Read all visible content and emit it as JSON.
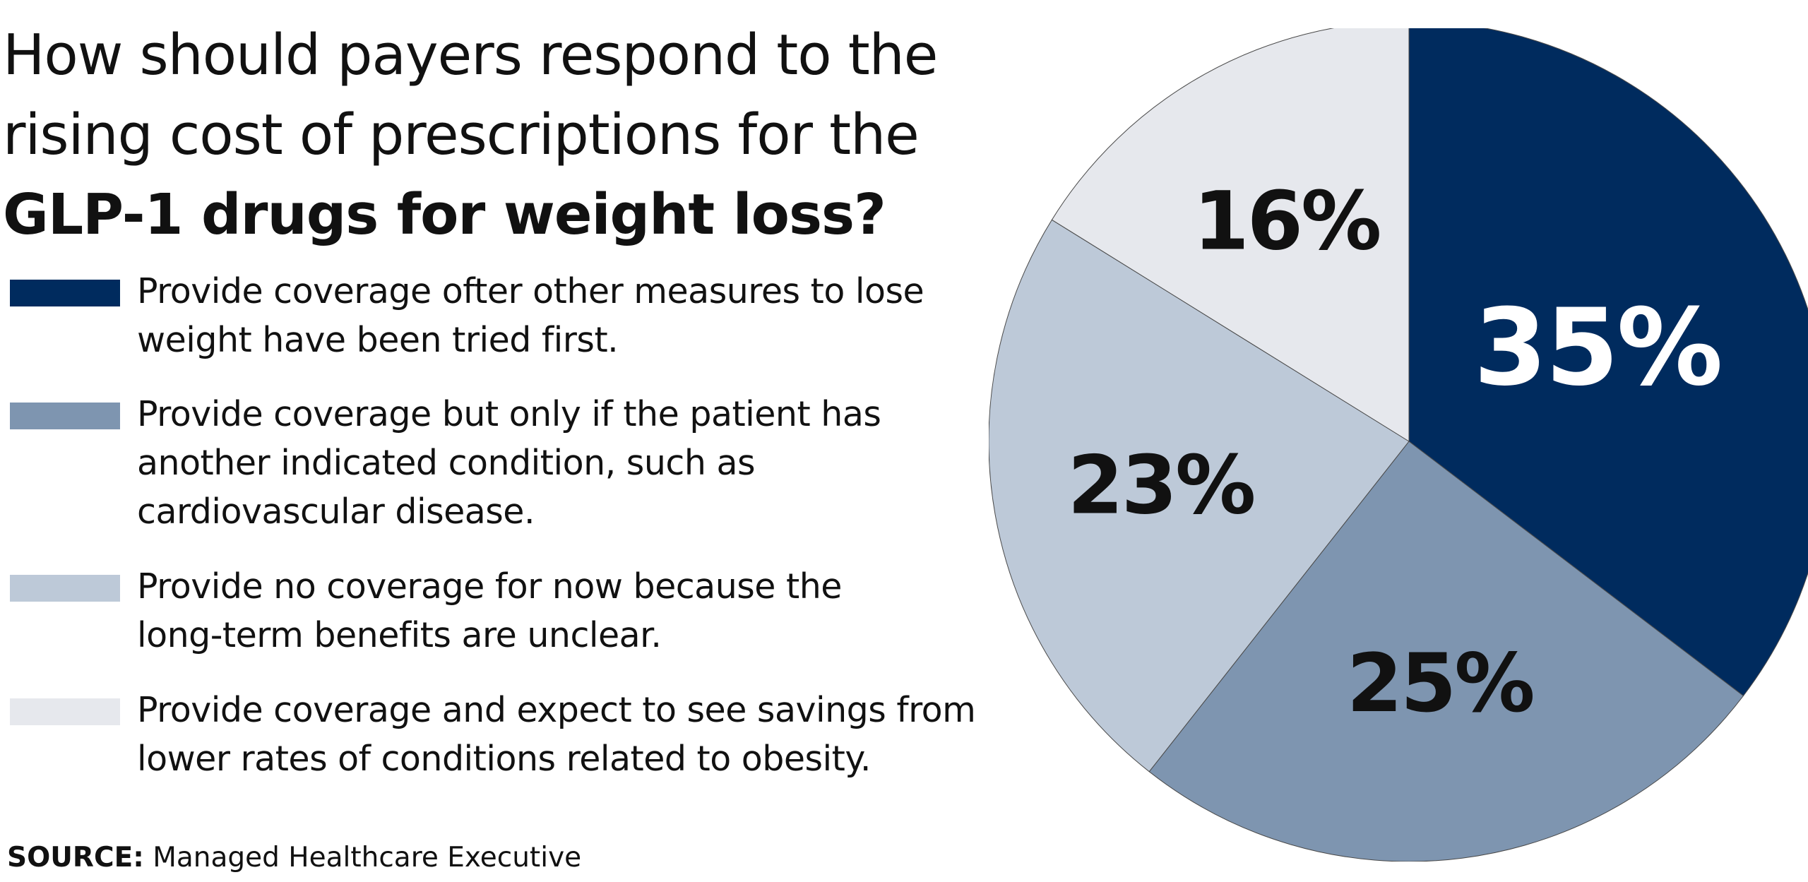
{
  "title": {
    "line1": "How should payers respond to the",
    "line2": "rising cost of prescriptions for the",
    "line3": "GLP-1 drugs for weight loss?"
  },
  "legend": [
    {
      "line1": "Provide coverage ofter other measures to lose",
      "line2": "weight have been tried first.",
      "line3": "",
      "color": "#002b5e"
    },
    {
      "line1": "Provide coverage but only if the patient has",
      "line2": "another indicated condition, such as",
      "line3": "cardiovascular disease.",
      "color": "#7e95b0"
    },
    {
      "line1": "Provide no coverage for now because the",
      "line2": "long-term benefits are unclear.",
      "line3": "",
      "color": "#bdc9d8"
    },
    {
      "line1": "Provide coverage and expect to see savings from",
      "line2": "lower rates of conditions related to obesity.",
      "line3": "",
      "color": "#e6e8ed"
    }
  ],
  "source": {
    "label": "SOURCE:",
    "text": "Managed Healthcare Executive"
  },
  "chart_data": {
    "type": "pie",
    "title": "How should payers respond to the rising cost of prescriptions for the GLP-1 drugs for weight loss?",
    "categories": [
      "Provide coverage ofter other measures to lose weight have been tried first.",
      "Provide coverage but only if the patient has another indicated condition, such as cardiovascular disease.",
      "Provide no coverage for now because the long-term benefits are unclear.",
      "Provide coverage and expect to see savings from lower rates of conditions related to obesity."
    ],
    "values": [
      35,
      25,
      23,
      16
    ],
    "labels": [
      "35%",
      "25%",
      "23%",
      "16%"
    ],
    "colors": [
      "#002b5e",
      "#7e95b0",
      "#bdc9d8",
      "#e6e8ed"
    ],
    "label_colors": [
      "#ffffff",
      "#111111",
      "#111111",
      "#111111"
    ],
    "start_angle": "12 o'clock",
    "direction": "clockwise",
    "legend_position": "left"
  }
}
